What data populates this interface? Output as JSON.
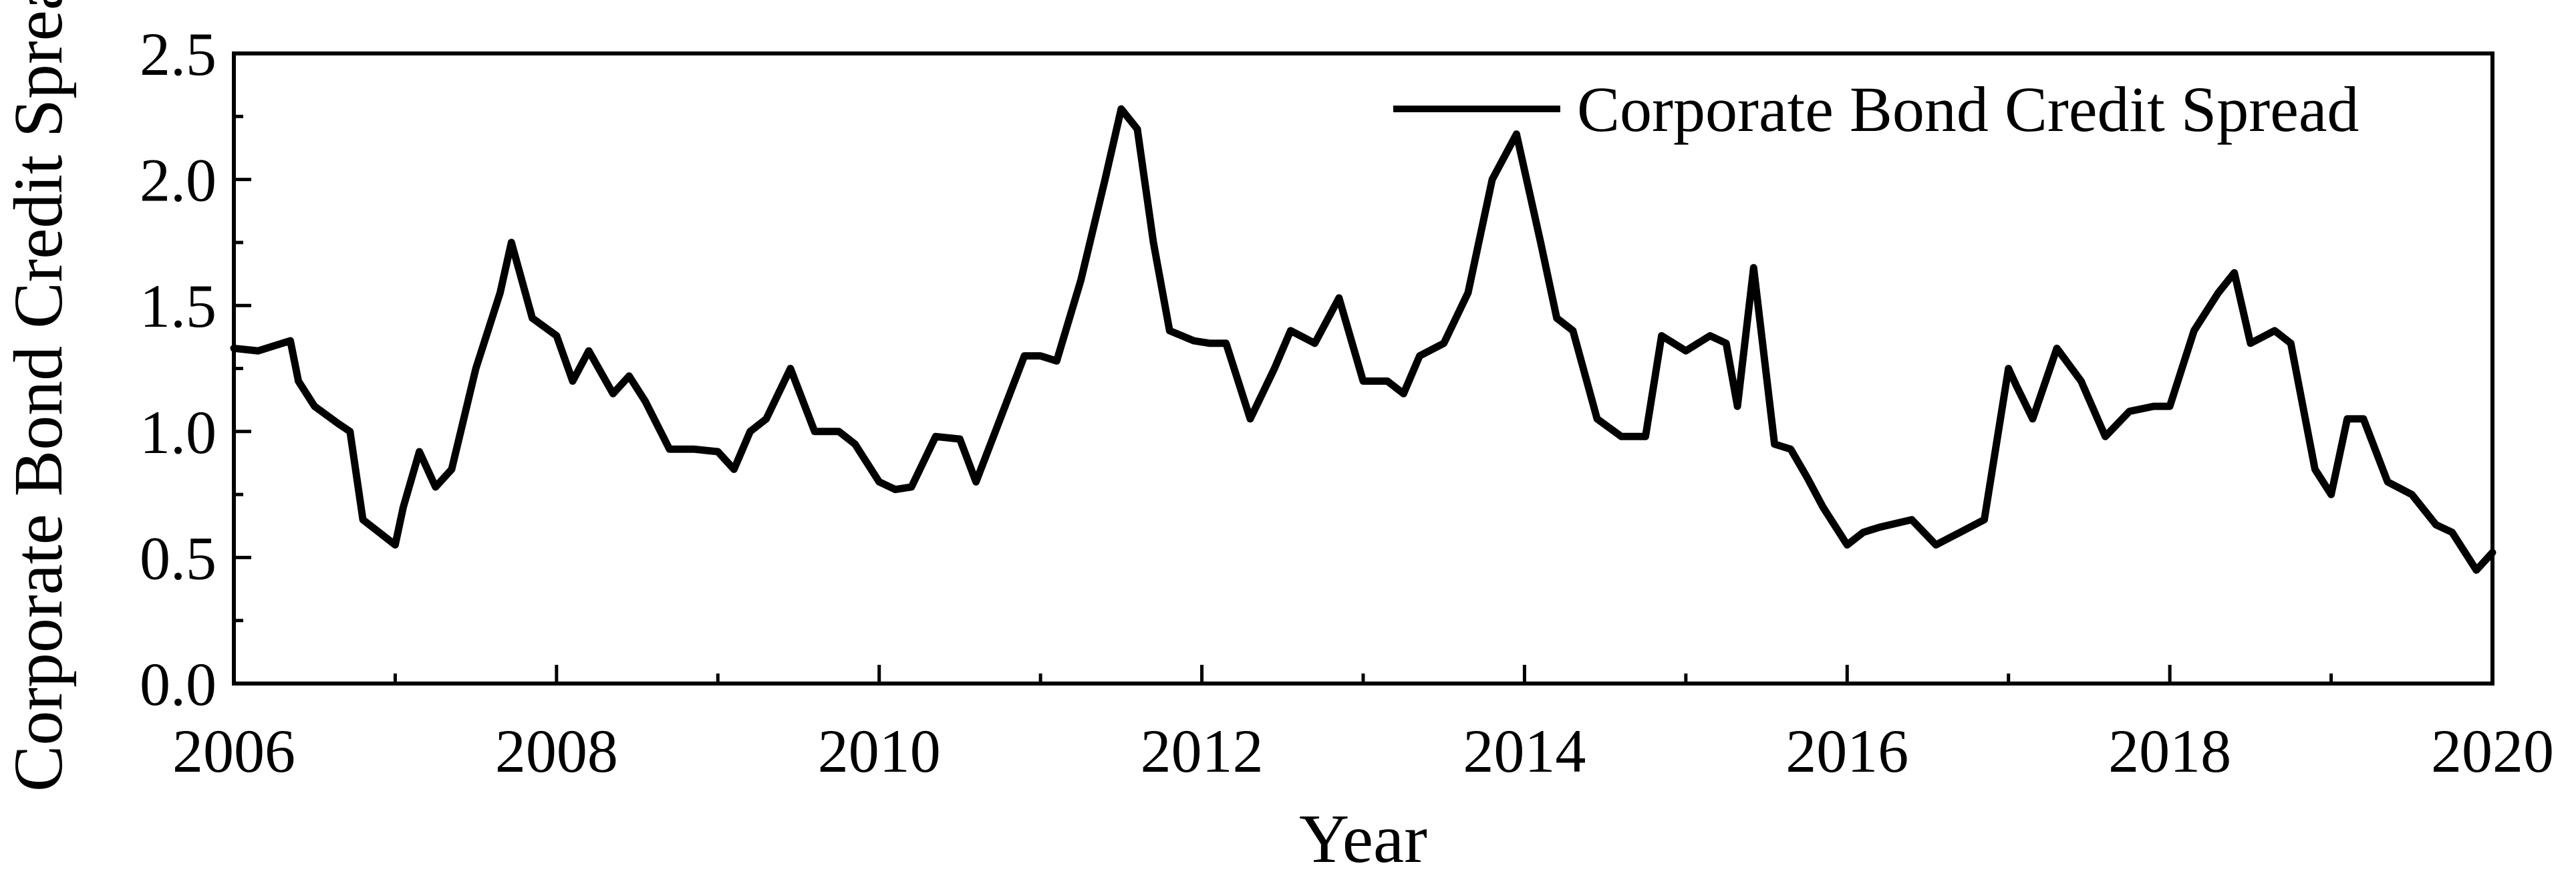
{
  "chart_data": {
    "type": "line",
    "xlabel": "Year",
    "ylabel": "Corporate Bond Credit Spread",
    "xlim": [
      2006,
      2020
    ],
    "ylim": [
      0,
      2.5
    ],
    "x_ticks": [
      2006,
      2008,
      2010,
      2012,
      2014,
      2016,
      2018,
      2020
    ],
    "x_tick_labels": [
      "2006",
      "2008",
      "2010",
      "2012",
      "2014",
      "2016",
      "2018",
      "2020"
    ],
    "y_ticks": [
      0,
      0.5,
      1.0,
      1.5,
      2.0,
      2.5
    ],
    "y_tick_labels": [
      "0.0",
      "0.5",
      "1.0",
      "1.5",
      "2.0",
      "2.5"
    ],
    "legend": {
      "position": "top-right",
      "entries": [
        "Corporate Bond Credit Spread"
      ]
    },
    "grid": false,
    "line_color": "#000000",
    "series": [
      {
        "name": "Corporate Bond Credit Spread",
        "x": [
          2006.0,
          2006.15,
          2006.3,
          2006.35,
          2006.4,
          2006.5,
          2006.65,
          2006.72,
          2006.8,
          2006.9,
          2007.0,
          2007.05,
          2007.15,
          2007.25,
          2007.35,
          2007.5,
          2007.65,
          2007.72,
          2007.85,
          2008.0,
          2008.1,
          2008.2,
          2008.35,
          2008.45,
          2008.55,
          2008.7,
          2008.85,
          2009.0,
          2009.1,
          2009.2,
          2009.3,
          2009.45,
          2009.6,
          2009.75,
          2009.85,
          2010.0,
          2010.1,
          2010.2,
          2010.35,
          2010.5,
          2010.6,
          2010.75,
          2010.9,
          2011.0,
          2011.1,
          2011.25,
          2011.4,
          2011.5,
          2011.6,
          2011.7,
          2011.8,
          2011.95,
          2012.05,
          2012.15,
          2012.3,
          2012.45,
          2012.55,
          2012.7,
          2012.85,
          2013.0,
          2013.15,
          2013.25,
          2013.35,
          2013.5,
          2013.65,
          2013.8,
          2013.95,
          2014.1,
          2014.2,
          2014.3,
          2014.45,
          2014.6,
          2014.75,
          2014.85,
          2015.0,
          2015.15,
          2015.25,
          2015.32,
          2015.42,
          2015.55,
          2015.65,
          2015.75,
          2015.85,
          2016.0,
          2016.1,
          2016.2,
          2016.4,
          2016.55,
          2016.7,
          2016.85,
          2017.0,
          2017.05,
          2017.15,
          2017.3,
          2017.45,
          2017.6,
          2017.75,
          2017.9,
          2018.0,
          2018.15,
          2018.3,
          2018.4,
          2018.5,
          2018.65,
          2018.75,
          2018.9,
          2019.0,
          2019.1,
          2019.2,
          2019.35,
          2019.5,
          2019.65,
          2019.75,
          2019.9,
          2020.0
        ],
        "values": [
          1.33,
          1.32,
          1.35,
          1.36,
          1.2,
          1.1,
          1.03,
          1.0,
          0.65,
          0.6,
          0.55,
          0.7,
          0.92,
          0.78,
          0.85,
          1.25,
          1.55,
          1.75,
          1.45,
          1.38,
          1.2,
          1.32,
          1.15,
          1.22,
          1.12,
          0.93,
          0.93,
          0.92,
          0.85,
          1.0,
          1.05,
          1.25,
          1.0,
          1.0,
          0.95,
          0.8,
          0.77,
          0.78,
          0.98,
          0.97,
          0.8,
          1.05,
          1.3,
          1.3,
          1.28,
          1.6,
          2.0,
          2.28,
          2.2,
          1.75,
          1.4,
          1.36,
          1.35,
          1.35,
          1.05,
          1.25,
          1.4,
          1.35,
          1.53,
          1.2,
          1.2,
          1.15,
          1.3,
          1.35,
          1.55,
          2.0,
          2.18,
          1.75,
          1.45,
          1.4,
          1.05,
          0.98,
          0.98,
          1.38,
          1.32,
          1.38,
          1.35,
          1.1,
          1.65,
          0.95,
          0.93,
          0.82,
          0.7,
          0.55,
          0.6,
          0.62,
          0.65,
          0.55,
          0.6,
          0.65,
          1.25,
          1.18,
          1.05,
          1.33,
          1.2,
          0.98,
          1.08,
          1.1,
          1.1,
          1.4,
          1.55,
          1.63,
          1.35,
          1.4,
          1.35,
          0.85,
          0.75,
          1.05,
          1.05,
          0.8,
          0.75,
          0.63,
          0.6,
          0.45,
          0.52
        ]
      }
    ]
  }
}
